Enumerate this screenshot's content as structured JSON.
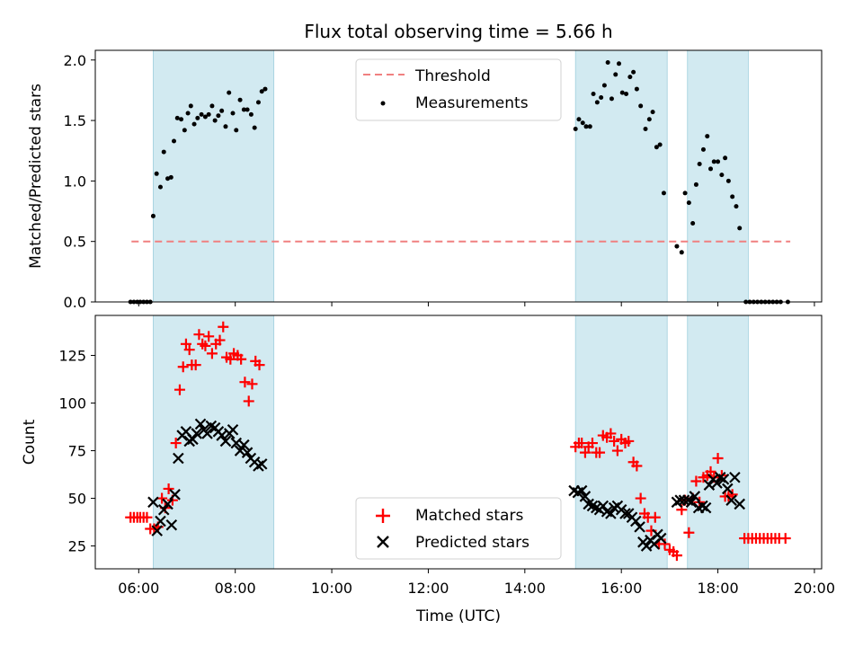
{
  "chart_data": [
    {
      "type": "scatter",
      "title": "Flux total observing time = 5.66 h",
      "ylabel": "Matched/Predicted stars",
      "xlabel": "",
      "xlim": [
        5.1,
        20.15
      ],
      "ylim": [
        0,
        2.08
      ],
      "x_ticks": [
        6,
        8,
        10,
        12,
        14,
        16,
        18,
        20
      ],
      "y_ticks": [
        0.0,
        0.5,
        1.0,
        1.5,
        2.0
      ],
      "y_tick_labels": [
        "0.0",
        "0.5",
        "1.0",
        "1.5",
        "2.0"
      ],
      "shaded_intervals": [
        [
          6.3,
          8.8
        ],
        [
          15.05,
          16.95
        ],
        [
          17.37,
          18.63
        ]
      ],
      "shade_color": "#add8e6",
      "legend_position": "upper-center",
      "threshold": {
        "name": "Threshold",
        "value": 0.5,
        "x_range": [
          5.85,
          19.5
        ],
        "color": "#f08080"
      },
      "series": [
        {
          "name": "Measurements",
          "color": "#000000",
          "points": [
            [
              5.83,
              0
            ],
            [
              5.9,
              0
            ],
            [
              5.97,
              0
            ],
            [
              6.03,
              0
            ],
            [
              6.1,
              0
            ],
            [
              6.17,
              0
            ],
            [
              6.24,
              0
            ],
            [
              6.3,
              0.71
            ],
            [
              6.37,
              1.06
            ],
            [
              6.45,
              0.95
            ],
            [
              6.52,
              1.24
            ],
            [
              6.6,
              1.02
            ],
            [
              6.67,
              1.03
            ],
            [
              6.73,
              1.33
            ],
            [
              6.8,
              1.52
            ],
            [
              6.88,
              1.51
            ],
            [
              6.95,
              1.42
            ],
            [
              7.02,
              1.56
            ],
            [
              7.08,
              1.62
            ],
            [
              7.15,
              1.47
            ],
            [
              7.22,
              1.52
            ],
            [
              7.3,
              1.55
            ],
            [
              7.38,
              1.53
            ],
            [
              7.45,
              1.55
            ],
            [
              7.52,
              1.62
            ],
            [
              7.58,
              1.5
            ],
            [
              7.65,
              1.54
            ],
            [
              7.72,
              1.58
            ],
            [
              7.8,
              1.45
            ],
            [
              7.87,
              1.73
            ],
            [
              7.95,
              1.56
            ],
            [
              8.02,
              1.42
            ],
            [
              8.1,
              1.67
            ],
            [
              8.18,
              1.59
            ],
            [
              8.25,
              1.59
            ],
            [
              8.33,
              1.55
            ],
            [
              8.4,
              1.44
            ],
            [
              8.48,
              1.65
            ],
            [
              8.55,
              1.74
            ],
            [
              8.62,
              1.76
            ],
            [
              15.05,
              1.43
            ],
            [
              15.12,
              1.51
            ],
            [
              15.2,
              1.48
            ],
            [
              15.27,
              1.45
            ],
            [
              15.35,
              1.45
            ],
            [
              15.42,
              1.72
            ],
            [
              15.5,
              1.65
            ],
            [
              15.58,
              1.69
            ],
            [
              15.65,
              1.79
            ],
            [
              15.72,
              1.98
            ],
            [
              15.8,
              1.68
            ],
            [
              15.88,
              1.88
            ],
            [
              15.95,
              1.97
            ],
            [
              16.02,
              1.73
            ],
            [
              16.1,
              1.72
            ],
            [
              16.18,
              1.86
            ],
            [
              16.25,
              1.9
            ],
            [
              16.32,
              1.76
            ],
            [
              16.4,
              1.62
            ],
            [
              16.5,
              1.43
            ],
            [
              16.58,
              1.51
            ],
            [
              16.65,
              1.57
            ],
            [
              16.73,
              1.28
            ],
            [
              16.8,
              1.3
            ],
            [
              16.88,
              0.9
            ],
            [
              17.15,
              0.46
            ],
            [
              17.25,
              0.41
            ],
            [
              17.32,
              0.9
            ],
            [
              17.4,
              0.82
            ],
            [
              17.48,
              0.65
            ],
            [
              17.55,
              0.97
            ],
            [
              17.62,
              1.14
            ],
            [
              17.7,
              1.26
            ],
            [
              17.78,
              1.37
            ],
            [
              17.85,
              1.1
            ],
            [
              17.92,
              1.16
            ],
            [
              18.0,
              1.16
            ],
            [
              18.08,
              1.05
            ],
            [
              18.15,
              1.19
            ],
            [
              18.22,
              1.0
            ],
            [
              18.3,
              0.87
            ],
            [
              18.38,
              0.79
            ],
            [
              18.45,
              0.61
            ],
            [
              18.58,
              0
            ],
            [
              18.66,
              0
            ],
            [
              18.74,
              0
            ],
            [
              18.82,
              0
            ],
            [
              18.9,
              0
            ],
            [
              18.98,
              0
            ],
            [
              19.06,
              0
            ],
            [
              19.14,
              0
            ],
            [
              19.22,
              0
            ],
            [
              19.3,
              0
            ],
            [
              19.45,
              0
            ]
          ]
        }
      ]
    },
    {
      "type": "scatter",
      "title": "",
      "ylabel": "Count",
      "xlabel": "Time (UTC)",
      "xlim": [
        5.1,
        20.15
      ],
      "ylim": [
        13,
        146
      ],
      "x_ticks": [
        6,
        8,
        10,
        12,
        14,
        16,
        18,
        20
      ],
      "x_tick_labels": [
        "06:00",
        "08:00",
        "10:00",
        "12:00",
        "14:00",
        "16:00",
        "18:00",
        "20:00"
      ],
      "y_ticks": [
        25,
        50,
        75,
        100,
        125
      ],
      "y_tick_labels": [
        "25",
        "50",
        "75",
        "100",
        "125"
      ],
      "shaded_intervals": [
        [
          6.3,
          8.8
        ],
        [
          15.05,
          16.95
        ],
        [
          17.37,
          18.63
        ]
      ],
      "shade_color": "#add8e6",
      "legend_position": "lower-center",
      "series": [
        {
          "name": "Matched stars",
          "marker": "plus",
          "color": "#ff0000",
          "points": [
            [
              5.83,
              40
            ],
            [
              5.9,
              40
            ],
            [
              5.97,
              40
            ],
            [
              6.03,
              40
            ],
            [
              6.1,
              40
            ],
            [
              6.17,
              40
            ],
            [
              6.24,
              34
            ],
            [
              6.32,
              34
            ],
            [
              6.4,
              35
            ],
            [
              6.48,
              50
            ],
            [
              6.55,
              45
            ],
            [
              6.62,
              55
            ],
            [
              6.7,
              49
            ],
            [
              6.77,
              79
            ],
            [
              6.85,
              107
            ],
            [
              6.92,
              119
            ],
            [
              6.98,
              131
            ],
            [
              7.05,
              128
            ],
            [
              7.1,
              120
            ],
            [
              7.18,
              120
            ],
            [
              7.25,
              136
            ],
            [
              7.32,
              131
            ],
            [
              7.38,
              130
            ],
            [
              7.45,
              135
            ],
            [
              7.52,
              126
            ],
            [
              7.6,
              131
            ],
            [
              7.68,
              133
            ],
            [
              7.75,
              140
            ],
            [
              7.82,
              124
            ],
            [
              7.9,
              123
            ],
            [
              7.97,
              126
            ],
            [
              8.05,
              125
            ],
            [
              8.12,
              123
            ],
            [
              8.2,
              111
            ],
            [
              8.28,
              101
            ],
            [
              8.35,
              110
            ],
            [
              8.42,
              122
            ],
            [
              8.5,
              120
            ],
            [
              15.05,
              77
            ],
            [
              15.12,
              79
            ],
            [
              15.18,
              79
            ],
            [
              15.25,
              74
            ],
            [
              15.32,
              77
            ],
            [
              15.4,
              79
            ],
            [
              15.48,
              74
            ],
            [
              15.55,
              74
            ],
            [
              15.62,
              83
            ],
            [
              15.7,
              82
            ],
            [
              15.78,
              84
            ],
            [
              15.85,
              80
            ],
            [
              15.92,
              75
            ],
            [
              16.0,
              81
            ],
            [
              16.08,
              79
            ],
            [
              16.15,
              80
            ],
            [
              16.25,
              69
            ],
            [
              16.32,
              67
            ],
            [
              16.4,
              50
            ],
            [
              16.48,
              42
            ],
            [
              16.55,
              40
            ],
            [
              16.62,
              33
            ],
            [
              16.7,
              40
            ],
            [
              16.78,
              26
            ],
            [
              16.9,
              26
            ],
            [
              17.0,
              23
            ],
            [
              17.08,
              22
            ],
            [
              17.15,
              20
            ],
            [
              17.25,
              44
            ],
            [
              17.32,
              49
            ],
            [
              17.4,
              32
            ],
            [
              17.48,
              50
            ],
            [
              17.55,
              59
            ],
            [
              17.62,
              48
            ],
            [
              17.7,
              61
            ],
            [
              17.78,
              62
            ],
            [
              17.85,
              64
            ],
            [
              17.92,
              61
            ],
            [
              18.0,
              71
            ],
            [
              18.08,
              62
            ],
            [
              18.15,
              51
            ],
            [
              18.22,
              51
            ],
            [
              18.3,
              52
            ],
            [
              18.55,
              29
            ],
            [
              18.63,
              29
            ],
            [
              18.71,
              29
            ],
            [
              18.79,
              29
            ],
            [
              18.87,
              29
            ],
            [
              18.95,
              29
            ],
            [
              19.03,
              29
            ],
            [
              19.11,
              29
            ],
            [
              19.19,
              29
            ],
            [
              19.27,
              29
            ],
            [
              19.4,
              29
            ]
          ]
        },
        {
          "name": "Predicted stars",
          "marker": "x",
          "color": "#000000",
          "points": [
            [
              6.3,
              48
            ],
            [
              6.38,
              33
            ],
            [
              6.45,
              38
            ],
            [
              6.52,
              44
            ],
            [
              6.6,
              47
            ],
            [
              6.68,
              36
            ],
            [
              6.75,
              52
            ],
            [
              6.82,
              71
            ],
            [
              6.9,
              83
            ],
            [
              6.98,
              85
            ],
            [
              7.05,
              80
            ],
            [
              7.12,
              81
            ],
            [
              7.2,
              84
            ],
            [
              7.28,
              89
            ],
            [
              7.35,
              86
            ],
            [
              7.42,
              84
            ],
            [
              7.5,
              88
            ],
            [
              7.58,
              87
            ],
            [
              7.65,
              85
            ],
            [
              7.72,
              83
            ],
            [
              7.8,
              80
            ],
            [
              7.88,
              84
            ],
            [
              7.95,
              86
            ],
            [
              8.02,
              79
            ],
            [
              8.1,
              75
            ],
            [
              8.18,
              78
            ],
            [
              8.25,
              74
            ],
            [
              8.32,
              71
            ],
            [
              8.4,
              69
            ],
            [
              8.48,
              67
            ],
            [
              8.55,
              68
            ],
            [
              15.02,
              54
            ],
            [
              15.1,
              53
            ],
            [
              15.18,
              54
            ],
            [
              15.25,
              51
            ],
            [
              15.32,
              47
            ],
            [
              15.4,
              46
            ],
            [
              15.48,
              45
            ],
            [
              15.55,
              44
            ],
            [
              15.62,
              46
            ],
            [
              15.7,
              43
            ],
            [
              15.78,
              42
            ],
            [
              15.85,
              45
            ],
            [
              15.92,
              46
            ],
            [
              16.0,
              44
            ],
            [
              16.08,
              42
            ],
            [
              16.15,
              42
            ],
            [
              16.22,
              40
            ],
            [
              16.3,
              38
            ],
            [
              16.38,
              35
            ],
            [
              16.45,
              27
            ],
            [
              16.52,
              25
            ],
            [
              16.6,
              28
            ],
            [
              16.68,
              26
            ],
            [
              16.75,
              31
            ],
            [
              16.82,
              29
            ],
            [
              17.15,
              48
            ],
            [
              17.22,
              49
            ],
            [
              17.3,
              49
            ],
            [
              17.38,
              49
            ],
            [
              17.45,
              48
            ],
            [
              17.52,
              51
            ],
            [
              17.6,
              45
            ],
            [
              17.68,
              46
            ],
            [
              17.75,
              45
            ],
            [
              17.82,
              57
            ],
            [
              17.9,
              60
            ],
            [
              17.98,
              58
            ],
            [
              18.05,
              61
            ],
            [
              18.12,
              60
            ],
            [
              18.2,
              55
            ],
            [
              18.28,
              49
            ],
            [
              18.35,
              61
            ],
            [
              18.45,
              47
            ]
          ]
        }
      ]
    }
  ]
}
